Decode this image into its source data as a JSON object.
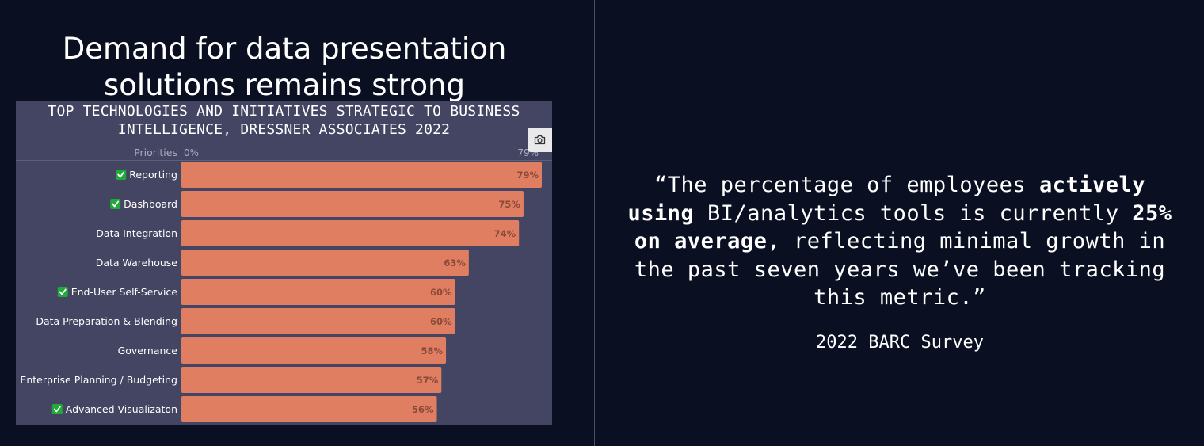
{
  "slide": {
    "heading_line1": "Demand for data presentation",
    "heading_line2": "solutions remains strong"
  },
  "chart_data": {
    "type": "bar",
    "orientation": "horizontal",
    "title_line1": "TOP TECHNOLOGIES AND INITIATIVES STRATEGIC TO BUSINESS",
    "title_line2": "INTELLIGENCE, DRESSNER ASSOCIATES 2022",
    "category_header": "Priorities",
    "axis_min_label": "0%",
    "axis_max_label": "79%",
    "xlim": [
      0,
      79
    ],
    "value_suffix": "%",
    "categories": [
      "Reporting",
      "Dashboard",
      "Data Integration",
      "Data Warehouse",
      "End-User Self-Service",
      "Data Preparation & Blending",
      "Governance",
      "Enterprise Planning / Budgeting",
      "Advanced Visualizaton"
    ],
    "checked": [
      true,
      true,
      false,
      false,
      true,
      false,
      false,
      false,
      true
    ],
    "values": [
      79,
      75,
      74,
      63,
      60,
      60,
      58,
      57,
      56
    ],
    "bar_color": "#e07e62",
    "check_color": "#1faa3a",
    "camera_icon": "camera-icon"
  },
  "quote": {
    "open_mark": "“",
    "part1": "The percentage of employees ",
    "bold1": "actively using",
    "part2": " BI/analytics tools is currently ",
    "bold2": "25% on average",
    "part3": ", reflecting minimal growth in the past seven years we’ve been tracking this metric.",
    "close_mark": "”",
    "source": "2022 BARC Survey"
  }
}
